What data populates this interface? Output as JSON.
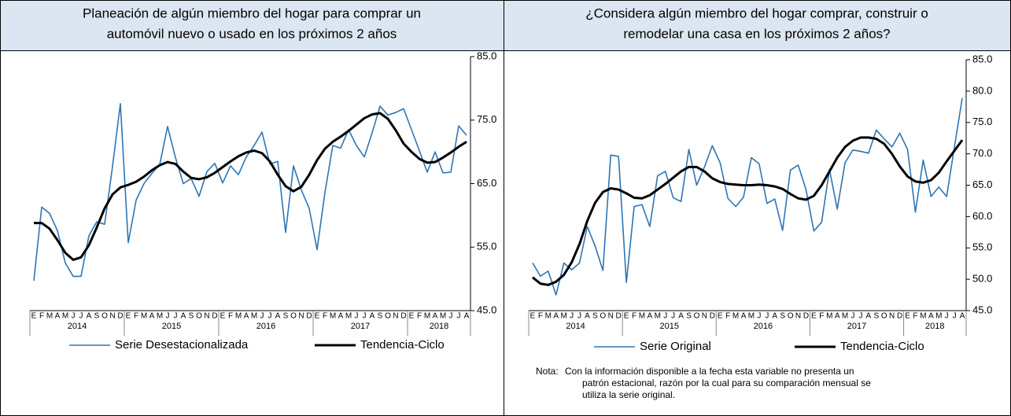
{
  "chart_data": [
    {
      "type": "line",
      "title": [
        "Planeación de algún miembro del hogar para comprar un",
        "automóvil nuevo o usado en los próximos 2 años"
      ],
      "categories": [
        "E",
        "F",
        "M",
        "A",
        "M",
        "J",
        "J",
        "A",
        "S",
        "O",
        "N",
        "D",
        "E",
        "F",
        "M",
        "A",
        "M",
        "J",
        "J",
        "A",
        "S",
        "O",
        "N",
        "D",
        "E",
        "F",
        "M",
        "A",
        "M",
        "J",
        "J",
        "A",
        "S",
        "O",
        "N",
        "D",
        "E",
        "F",
        "M",
        "A",
        "M",
        "J",
        "J",
        "A",
        "S",
        "O",
        "N",
        "D",
        "E",
        "F",
        "M",
        "A",
        "M",
        "J",
        "J",
        "A"
      ],
      "years": [
        "2014",
        "2015",
        "2016",
        "2017",
        "2018"
      ],
      "ylim": [
        45,
        85
      ],
      "yticks": [
        {
          "value": 45,
          "label": "45.0"
        },
        {
          "value": 55,
          "label": "55.0"
        },
        {
          "value": 65,
          "label": "65.0"
        },
        {
          "value": 75,
          "label": "75.0"
        },
        {
          "value": 85,
          "label": "85.0"
        }
      ],
      "series": [
        {
          "name": "Serie Desestacionalizada",
          "color": "#2e75b6",
          "width": 1.6,
          "values": [
            49.7,
            61.3,
            60.3,
            57.6,
            52.5,
            50.4,
            50.4,
            56.8,
            59.0,
            58.6,
            67.7,
            77.6,
            55.7,
            62.4,
            65.0,
            66.6,
            68.0,
            74.0,
            69.1,
            65.0,
            65.8,
            63.0,
            66.9,
            68.2,
            65.1,
            67.8,
            66.4,
            69.2,
            71.0,
            73.1,
            68.1,
            68.5,
            57.3,
            67.8,
            64.0,
            61.1,
            54.6,
            63.6,
            71.0,
            70.6,
            73.5,
            71.0,
            69.2,
            73.0,
            77.2,
            75.8,
            76.2,
            76.8,
            73.5,
            70.2,
            66.8,
            70.0,
            66.7,
            66.8,
            74.1,
            72.6
          ]
        },
        {
          "name": "Tendencia-Ciclo",
          "color": "#000000",
          "width": 3,
          "values": [
            58.8,
            58.8,
            57.9,
            56.1,
            54.1,
            53.0,
            53.4,
            55.3,
            58.1,
            61.1,
            63.3,
            64.4,
            64.8,
            65.3,
            66.1,
            67.1,
            67.9,
            68.4,
            68.1,
            66.9,
            65.9,
            65.7,
            66.0,
            66.7,
            67.6,
            68.5,
            69.3,
            69.9,
            70.2,
            69.8,
            68.5,
            66.4,
            64.6,
            63.8,
            64.5,
            66.4,
            68.7,
            70.5,
            71.6,
            72.4,
            73.3,
            74.3,
            75.3,
            75.9,
            76.1,
            75.2,
            73.4,
            71.3,
            70.0,
            68.9,
            68.3,
            68.4,
            69.1,
            69.9,
            70.8,
            71.6
          ]
        }
      ]
    },
    {
      "type": "line",
      "title": [
        "¿Considera algún miembro del hogar comprar, construir o",
        "remodelar una casa en los próximos 2 años?"
      ],
      "categories": [
        "E",
        "F",
        "M",
        "A",
        "M",
        "J",
        "J",
        "A",
        "S",
        "O",
        "N",
        "D",
        "E",
        "F",
        "M",
        "A",
        "M",
        "J",
        "J",
        "A",
        "S",
        "O",
        "N",
        "D",
        "E",
        "F",
        "M",
        "A",
        "M",
        "J",
        "J",
        "A",
        "S",
        "O",
        "N",
        "D",
        "E",
        "F",
        "M",
        "A",
        "M",
        "J",
        "J",
        "A",
        "S",
        "O",
        "N",
        "D",
        "E",
        "F",
        "M",
        "A",
        "M",
        "J",
        "J",
        "A"
      ],
      "years": [
        "2014",
        "2015",
        "2016",
        "2017",
        "2018"
      ],
      "ylim": [
        45,
        85
      ],
      "yticks": [
        {
          "value": 45,
          "label": "45.0"
        },
        {
          "value": 50,
          "label": "50.0"
        },
        {
          "value": 55,
          "label": "55.0"
        },
        {
          "value": 60,
          "label": "60.0"
        },
        {
          "value": 65,
          "label": "65.0"
        },
        {
          "value": 70,
          "label": "70.0"
        },
        {
          "value": 75,
          "label": "75.0"
        },
        {
          "value": 80,
          "label": "80.0"
        },
        {
          "value": 85,
          "label": "85.0"
        }
      ],
      "series": [
        {
          "name": "Serie Original",
          "color": "#2e75b6",
          "width": 1.6,
          "values": [
            52.6,
            50.5,
            51.3,
            47.5,
            52.6,
            51.5,
            52.6,
            58.4,
            55.3,
            51.4,
            69.8,
            69.6,
            49.5,
            61.6,
            61.9,
            58.4,
            66.5,
            67.2,
            63.0,
            62.4,
            70.7,
            65.0,
            67.9,
            71.3,
            68.6,
            62.9,
            61.6,
            63.1,
            69.4,
            68.4,
            62.1,
            62.8,
            57.8,
            67.4,
            68.2,
            64.3,
            57.7,
            59.1,
            67.5,
            61.2,
            68.6,
            70.6,
            70.4,
            70.1,
            73.8,
            72.4,
            71.1,
            73.3,
            70.7,
            60.7,
            69.0,
            63.2,
            64.7,
            63.2,
            71.1,
            78.9
          ]
        },
        {
          "name": "Tendencia-Ciclo",
          "color": "#000000",
          "width": 3,
          "values": [
            50.3,
            49.3,
            49.1,
            49.6,
            50.7,
            52.7,
            55.6,
            59.3,
            62.2,
            63.9,
            64.5,
            64.3,
            63.7,
            63.0,
            62.9,
            63.4,
            64.3,
            65.2,
            66.2,
            67.2,
            67.9,
            67.9,
            67.2,
            66.1,
            65.5,
            65.2,
            65.1,
            65.0,
            65.0,
            65.1,
            65.0,
            64.8,
            64.4,
            63.6,
            62.9,
            62.7,
            63.3,
            65.0,
            67.2,
            69.4,
            71.1,
            72.1,
            72.6,
            72.6,
            72.4,
            71.6,
            70.0,
            68.0,
            66.4,
            65.6,
            65.4,
            65.8,
            67.0,
            68.8,
            70.5,
            72.2
          ]
        }
      ],
      "note": {
        "label": "Nota:",
        "lines": [
          "Con la información disponible a la fecha esta variable no presenta un",
          "patrón estacional, razón por la cual para su comparación mensual se",
          "utiliza la serie original."
        ]
      }
    }
  ]
}
